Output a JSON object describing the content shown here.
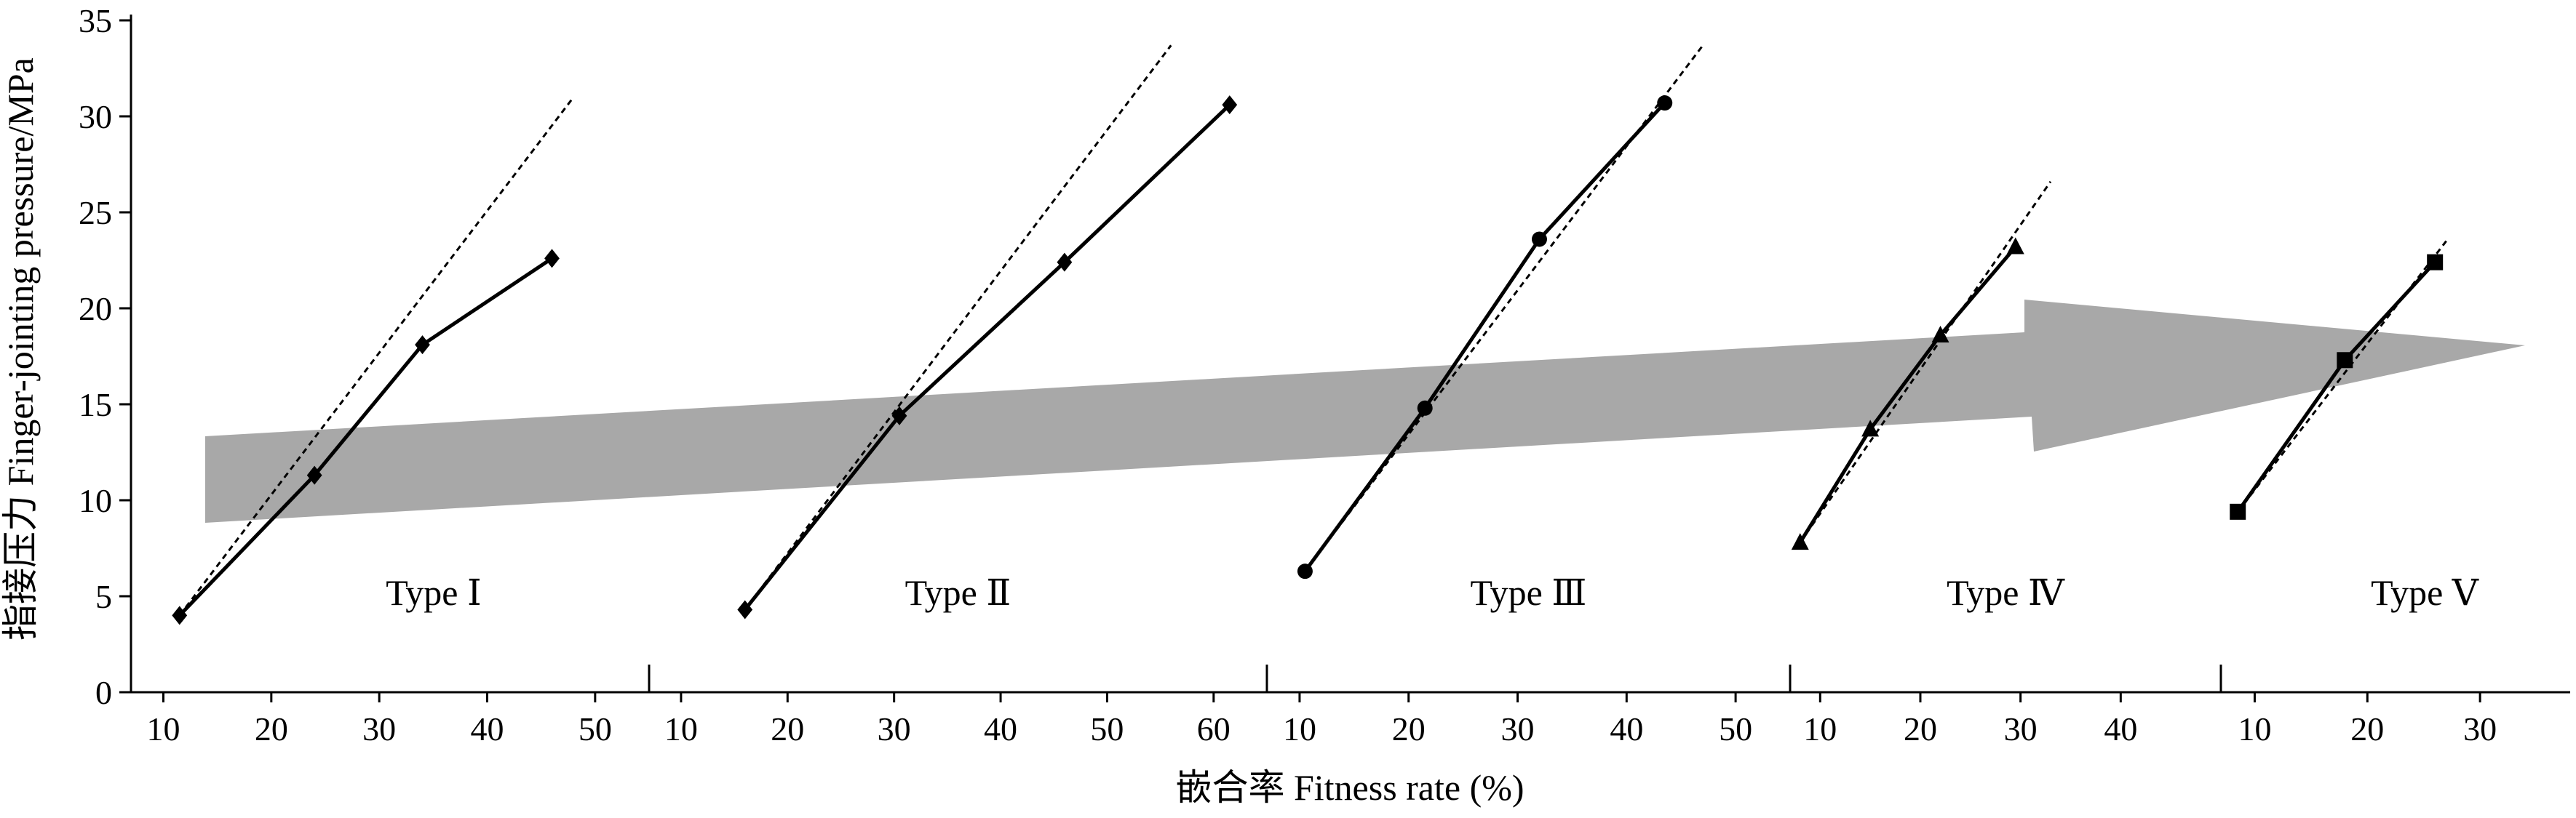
{
  "chart_data": {
    "type": "line",
    "ylabel": "指接压力  Finger-jointing pressure/MPa",
    "xlabel": "嵌合率  Fitness rate (%)",
    "ylim": [
      0,
      35
    ],
    "yticks": [
      0,
      5,
      10,
      15,
      20,
      25,
      30,
      35
    ],
    "arrow_color": "#a8a8a8",
    "panels": [
      {
        "label": "Type Ⅰ",
        "xlim": [
          7,
          55
        ],
        "xticks": [
          10,
          20,
          30,
          40,
          50
        ],
        "marker": "diamond",
        "x": [
          11.5,
          24,
          34,
          46
        ],
        "y": [
          4.0,
          11.3,
          18.1,
          22.6
        ],
        "trend": {
          "x1": 11.5,
          "y1": 4.0,
          "x2": 48,
          "y2": 31.0
        }
      },
      {
        "label": "Type Ⅱ",
        "xlim": [
          7,
          65
        ],
        "xticks": [
          10,
          20,
          30,
          40,
          50,
          60
        ],
        "marker": "diamond",
        "x": [
          16,
          30.5,
          46,
          61.5
        ],
        "y": [
          4.3,
          14.4,
          22.4,
          30.6
        ],
        "trend": {
          "x1": 16,
          "y1": 4.3,
          "x2": 56,
          "y2": 33.7
        }
      },
      {
        "label": "Type Ⅲ",
        "xlim": [
          7,
          55
        ],
        "xticks": [
          10,
          20,
          30,
          40,
          50
        ],
        "marker": "circle",
        "x": [
          10.5,
          21.5,
          32,
          43.5
        ],
        "y": [
          6.3,
          14.8,
          23.6,
          30.7
        ],
        "trend": {
          "x1": 10.5,
          "y1": 6.3,
          "x2": 47,
          "y2": 33.7
        }
      },
      {
        "label": "Type Ⅳ",
        "xlim": [
          7,
          50
        ],
        "xticks": [
          10,
          20,
          30,
          40
        ],
        "marker": "triangle",
        "x": [
          8,
          15,
          22,
          29.5
        ],
        "y": [
          7.8,
          13.7,
          18.6,
          23.2
        ],
        "trend": {
          "x1": 8,
          "y1": 7.8,
          "x2": 33,
          "y2": 26.6
        }
      },
      {
        "label": "Type Ⅴ",
        "xlim": [
          7,
          38
        ],
        "xticks": [
          10,
          20,
          30
        ],
        "marker": "square",
        "x": [
          8.5,
          18,
          26
        ],
        "y": [
          9.4,
          17.3,
          22.4
        ],
        "trend": {
          "x1": 8.5,
          "y1": 9.4,
          "x2": 27,
          "y2": 23.5
        }
      }
    ]
  }
}
